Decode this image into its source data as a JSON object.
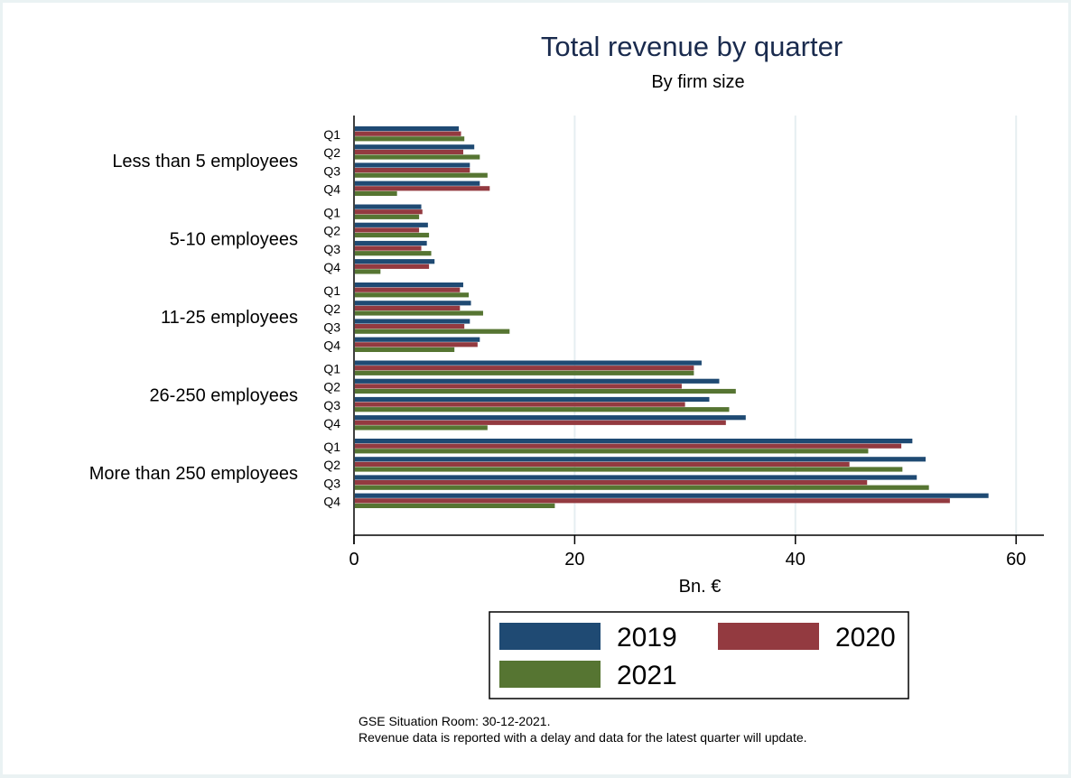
{
  "chart_data": {
    "type": "bar",
    "orientation": "horizontal",
    "title": "Total revenue by quarter",
    "subtitle": "By firm size",
    "xlabel": "Bn. €",
    "ylabel": "",
    "xlim": [
      0,
      62.5
    ],
    "xticks": [
      0,
      20,
      40,
      60
    ],
    "grid": true,
    "legend_position": "bottom",
    "groups": [
      "Less than 5 employees",
      "5-10 employees",
      "11-25 employees",
      "26-250 employees",
      "More than 250 employees"
    ],
    "subcategories": [
      "Q1",
      "Q2",
      "Q3",
      "Q4"
    ],
    "series": [
      {
        "name": "2019",
        "color": "#1f4a73",
        "values": [
          [
            9.5,
            10.9,
            10.5,
            11.4
          ],
          [
            6.1,
            6.7,
            6.6,
            7.3
          ],
          [
            9.9,
            10.6,
            10.5,
            11.4
          ],
          [
            31.5,
            33.1,
            32.2,
            35.5
          ],
          [
            50.6,
            51.8,
            51.0,
            57.5
          ]
        ]
      },
      {
        "name": "2020",
        "color": "#933a40",
        "values": [
          [
            9.7,
            9.9,
            10.5,
            12.3
          ],
          [
            6.2,
            5.9,
            6.1,
            6.8
          ],
          [
            9.6,
            9.6,
            10.0,
            11.2
          ],
          [
            30.8,
            29.7,
            30.0,
            33.7
          ],
          [
            49.6,
            44.9,
            46.5,
            54.0
          ]
        ]
      },
      {
        "name": "2021",
        "color": "#567532",
        "values": [
          [
            10.0,
            11.4,
            12.1,
            3.9
          ],
          [
            5.9,
            6.8,
            7.0,
            2.4
          ],
          [
            10.4,
            11.7,
            14.1,
            9.1
          ],
          [
            30.8,
            34.6,
            34.0,
            12.1
          ],
          [
            46.6,
            49.7,
            52.1,
            18.2
          ]
        ]
      }
    ]
  },
  "footnote": {
    "line1": "GSE Situation Room: 30-12-2021.",
    "line2": "Revenue data is reported with a delay and data for the latest quarter will update."
  }
}
